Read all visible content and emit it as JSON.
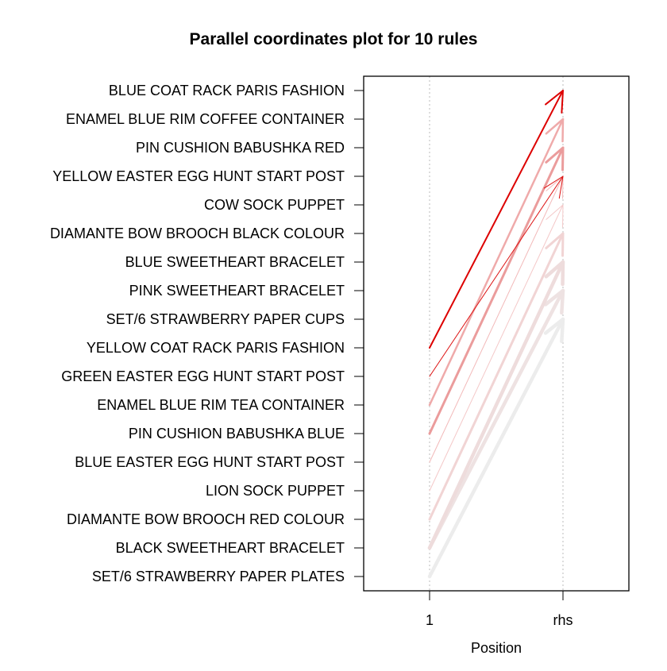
{
  "chart_data": {
    "type": "parallel_coordinates",
    "title": "Parallel coordinates plot for 10 rules",
    "xlabel": "Position",
    "x_ticks": [
      "1",
      "rhs"
    ],
    "y_items": [
      "BLUE COAT RACK PARIS FASHION",
      "ENAMEL BLUE RIM COFFEE CONTAINER",
      "PIN CUSHION BABUSHKA RED",
      "YELLOW EASTER EGG HUNT START POST",
      "COW  SOCK PUPPET",
      "DIAMANTE BOW BROOCH BLACK COLOUR",
      "BLUE SWEETHEART BRACELET",
      "PINK SWEETHEART BRACELET",
      "SET/6 STRAWBERRY PAPER CUPS",
      "YELLOW COAT RACK PARIS FASHION",
      "GREEN EASTER EGG HUNT START POST",
      "ENAMEL BLUE RIM TEA CONTAINER",
      "PIN CUSHION BABUSHKA BLUE",
      "BLUE EASTER EGG HUNT START POST",
      "LION SOCK PUPPET",
      "DIAMANTE BOW BROOCH RED COLOUR",
      "BLACK SWEETHEART BRACELET",
      "SET/6 STRAWBERRY PAPER PLATES"
    ],
    "rules": [
      {
        "lhs": "YELLOW COAT RACK PARIS FASHION",
        "rhs": "BLUE COAT RACK PARIS FASHION",
        "color": "#dd0000",
        "width": 2
      },
      {
        "lhs": "GREEN EASTER EGG HUNT START POST",
        "rhs": "YELLOW EASTER EGG HUNT START POST",
        "color": "#dd1111",
        "width": 1
      },
      {
        "lhs": "ENAMEL BLUE RIM TEA CONTAINER",
        "rhs": "ENAMEL BLUE RIM COFFEE CONTAINER",
        "color": "#efaaaa",
        "width": 2.5
      },
      {
        "lhs": "PIN CUSHION BABUSHKA BLUE",
        "rhs": "PIN CUSHION BABUSHKA RED",
        "color": "#eb9c9c",
        "width": 3
      },
      {
        "lhs": "BLUE EASTER EGG HUNT START POST",
        "rhs": "YELLOW EASTER EGG HUNT START POST",
        "color": "#f2b9b9",
        "width": 1
      },
      {
        "lhs": "LION SOCK PUPPET",
        "rhs": "COW  SOCK PUPPET",
        "color": "#f4c8c8",
        "width": 1
      },
      {
        "lhs": "DIAMANTE BOW BROOCH RED COLOUR",
        "rhs": "DIAMANTE BOW BROOCH BLACK COLOUR",
        "color": "#f1d4d4",
        "width": 3
      },
      {
        "lhs": "BLACK SWEETHEART BRACELET",
        "rhs": "BLUE SWEETHEART BRACELET",
        "color": "#eedcdc",
        "width": 4.5
      },
      {
        "lhs": "BLACK SWEETHEART BRACELET",
        "rhs": "PINK SWEETHEART BRACELET",
        "color": "#eee2e2",
        "width": 4.5
      },
      {
        "lhs": "SET/6 STRAWBERRY PAPER PLATES",
        "rhs": "SET/6 STRAWBERRY PAPER CUPS",
        "color": "#ececec",
        "width": 4.5
      }
    ],
    "grid": "vertical dotted",
    "legend": "none"
  }
}
